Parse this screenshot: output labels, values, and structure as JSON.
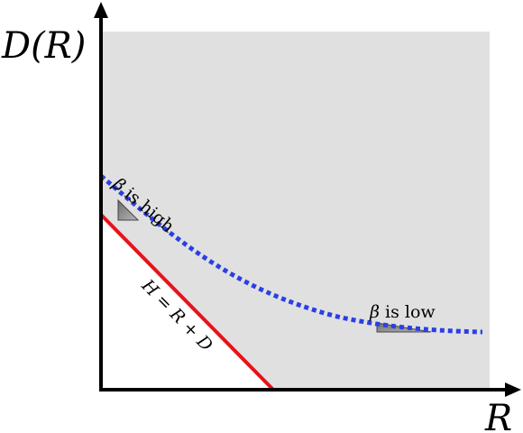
{
  "diagram": {
    "y_axis_title": "D(R)",
    "x_axis_title": "R",
    "line_label": "H = R + D",
    "beta_symbol": "β",
    "high_label": " is high",
    "low_label": " is low",
    "colors": {
      "feasible_region": "#e0e0e0",
      "bound_line": "#e8121a",
      "curve": "#2b3fe6",
      "slope_marker": "#8c8c8c",
      "axes": "#000000"
    }
  }
}
